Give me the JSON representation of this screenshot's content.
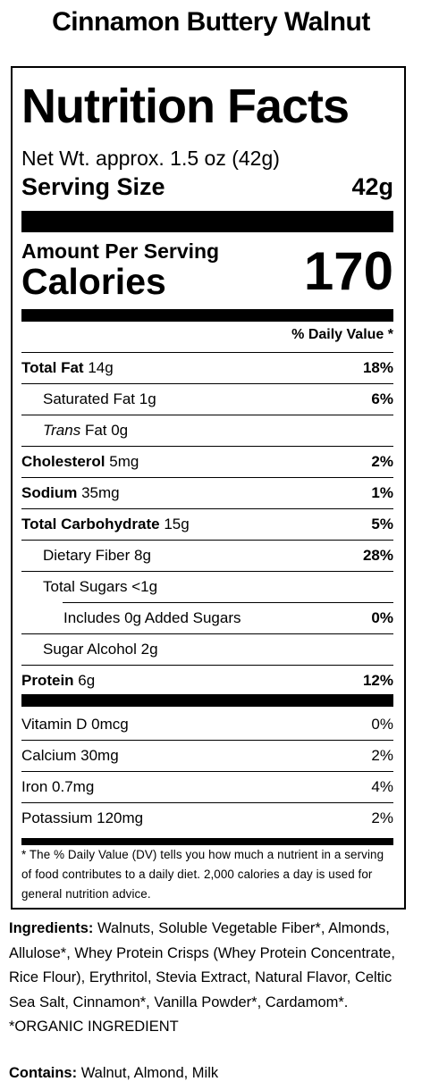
{
  "product_title": "Cinnamon Buttery Walnut",
  "label": {
    "title": "Nutrition Facts",
    "net_weight": "Net Wt. approx. 1.5 oz (42g)",
    "serving_size_label": "Serving Size",
    "serving_size_value": "42g",
    "amount_per_serving": "Amount Per Serving",
    "calories_label": "Calories",
    "calories_value": "170",
    "dv_header": "% Daily Value *",
    "nutrients": [
      {
        "name": "Total Fat",
        "amount": "14g",
        "dv": "18%"
      },
      {
        "name": "Saturated Fat",
        "amount": "1g",
        "dv": "6%"
      },
      {
        "name": "Trans",
        "amount": "Fat 0g",
        "dv": ""
      },
      {
        "name": "Cholesterol",
        "amount": "5mg",
        "dv": "2%"
      },
      {
        "name": "Sodium",
        "amount": "35mg",
        "dv": "1%"
      },
      {
        "name": "Total Carbohydrate",
        "amount": "15g",
        "dv": "5%"
      },
      {
        "name": "Dietary Fiber",
        "amount": "8g",
        "dv": "28%"
      },
      {
        "name": "Total Sugars",
        "amount": "<1g",
        "dv": ""
      },
      {
        "name": "Includes",
        "amount": "0g Added Sugars",
        "dv": "0%"
      },
      {
        "name": "Sugar Alcohol",
        "amount": "2g",
        "dv": ""
      },
      {
        "name": "Protein",
        "amount": "6g",
        "dv": "12%"
      }
    ],
    "vitamins": [
      {
        "name": "Vitamin D",
        "amount": "0mcg",
        "dv": "0%"
      },
      {
        "name": "Calcium",
        "amount": "30mg",
        "dv": "2%"
      },
      {
        "name": "Iron",
        "amount": "0.7mg",
        "dv": "4%"
      },
      {
        "name": "Potassium",
        "amount": "120mg",
        "dv": "2%"
      }
    ],
    "footnote": "* The % Daily Value (DV) tells you how much a nutrient in a serving of food contributes to a daily diet. 2,000 calories a day is used for general nutrition advice."
  },
  "ingredients": {
    "label": "Ingredients:",
    "text": "Walnuts, Soluble Vegetable Fiber*, Almonds, Allulose*, Whey Protein Crisps (Whey Protein Concentrate, Rice Flour), Erythritol, Stevia Extract, Natural Flavor, Celtic Sea Salt, Cinnamon*, Vanilla Powder*, Cardamom*. *ORGANIC INGREDIENT"
  },
  "contains": {
    "label": "Contains:",
    "text": "Walnut, Almond, Milk"
  }
}
